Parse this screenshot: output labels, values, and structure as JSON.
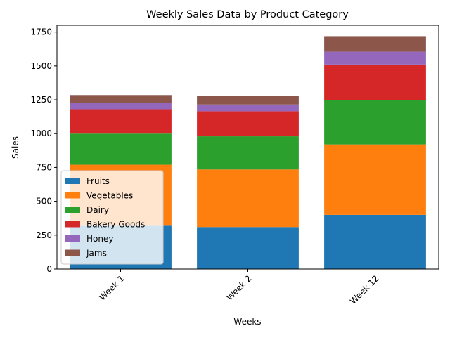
{
  "chart_data": {
    "type": "bar",
    "stacked": true,
    "title": "Weekly Sales Data by Product Category",
    "xlabel": "Weeks",
    "ylabel": "Sales",
    "categories": [
      "Week 1",
      "Week 2",
      "Week 12"
    ],
    "ylim": [
      0,
      1800
    ],
    "yticks": [
      0,
      250,
      500,
      750,
      1000,
      1250,
      1500,
      1750
    ],
    "grid": false,
    "legend_position": "lower-left",
    "series": [
      {
        "name": "Fruits",
        "color": "#1f77b4",
        "values": [
          320,
          310,
          400
        ]
      },
      {
        "name": "Vegetables",
        "color": "#ff7f0e",
        "values": [
          450,
          425,
          520
        ]
      },
      {
        "name": "Dairy",
        "color": "#2ca02c",
        "values": [
          230,
          245,
          330
        ]
      },
      {
        "name": "Bakery Goods",
        "color": "#d62728",
        "values": [
          180,
          185,
          260
        ]
      },
      {
        "name": "Honey",
        "color": "#9467bd",
        "values": [
          45,
          50,
          95
        ]
      },
      {
        "name": "Jams",
        "color": "#8c564b",
        "values": [
          60,
          65,
          115
        ]
      }
    ]
  }
}
